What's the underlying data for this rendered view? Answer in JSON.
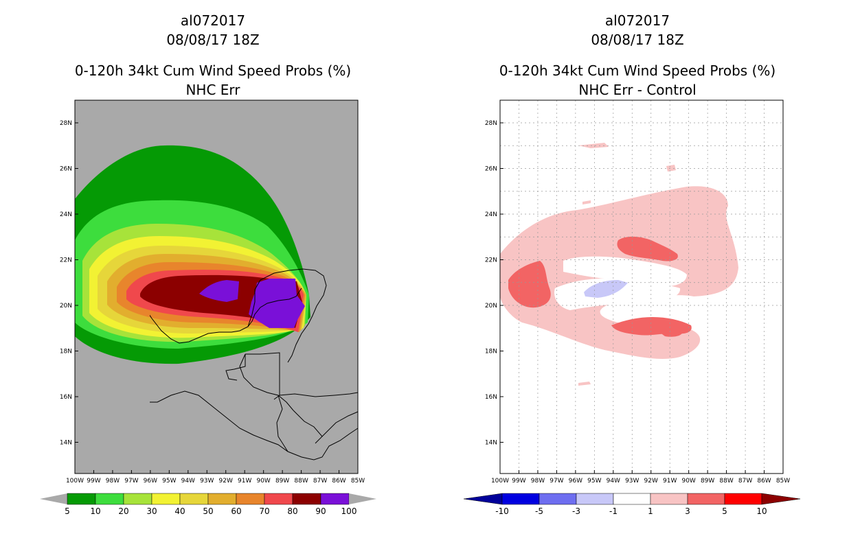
{
  "left": {
    "title_line1": "al072017",
    "title_line2": "08/08/17 18Z",
    "title_line3": "0-120h 34kt Cum Wind Speed Probs (%)",
    "title_line4": "NHC Err",
    "lat_labels": [
      "28N",
      "26N",
      "24N",
      "22N",
      "20N",
      "18N",
      "16N",
      "14N"
    ],
    "lon_labels": [
      "100W",
      "99W",
      "98W",
      "97W",
      "96W",
      "95W",
      "94W",
      "93W",
      "92W",
      "91W",
      "90W",
      "89W",
      "88W",
      "87W",
      "86W",
      "85W"
    ],
    "colorbar": {
      "colors": [
        "#059a05",
        "#3ddd3d",
        "#a7e33a",
        "#f2f233",
        "#e6d63a",
        "#e2ae2e",
        "#e8852c",
        "#f0484c",
        "#8c0000",
        "#7a10d8"
      ],
      "labels": [
        "5",
        "10",
        "20",
        "30",
        "40",
        "50",
        "60",
        "70",
        "80",
        "90",
        "100"
      ],
      "end_color": "#a9a9a9"
    },
    "background_color": "#a9a9a9"
  },
  "right": {
    "title_line1": "al072017",
    "title_line2": "08/08/17 18Z",
    "title_line3": "0-120h 34kt Cum Wind Speed Probs (%)",
    "title_line4": "NHC Err - Control",
    "lat_labels": [
      "28N",
      "26N",
      "24N",
      "22N",
      "20N",
      "18N",
      "16N",
      "14N"
    ],
    "lon_labels": [
      "100W",
      "99W",
      "98W",
      "97W",
      "96W",
      "95W",
      "94W",
      "93W",
      "92W",
      "91W",
      "90W",
      "89W",
      "88W",
      "87W",
      "86W",
      "85W"
    ],
    "colorbar": {
      "colors": [
        "#0000e0",
        "#6e6ef0",
        "#c8c8f8",
        "#ffffff",
        "#f8c4c4",
        "#f26464",
        "#ff0000"
      ],
      "labels": [
        "-10",
        "-5",
        "-3",
        "-1",
        "1",
        "3",
        "5",
        "10"
      ],
      "left_end_color": "#00009a",
      "right_end_color": "#8c0000"
    },
    "background_color": "#ffffff"
  }
}
